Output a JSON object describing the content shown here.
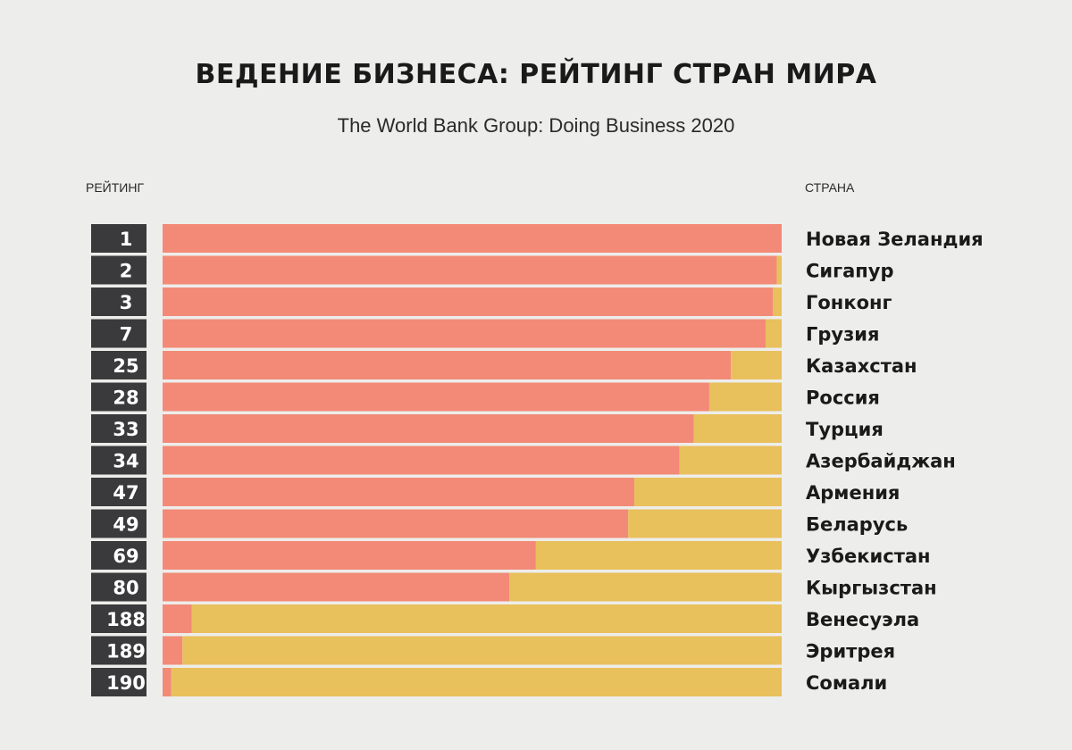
{
  "title": "ВЕДЕНИЕ БИЗНЕСА: РЕЙТИНГ СТРАН МИРА",
  "subtitle": "The World Bank Group: Doing Business 2020",
  "rank_header": "РЕЙТИНГ",
  "country_header": "СТРАНА",
  "colors": {
    "background": "#ededeb",
    "score_bar": "#f28a77",
    "remainder_bar": "#e8c05c",
    "rank_box": "#3a3a3c"
  },
  "chart_data": {
    "type": "bar",
    "orientation": "horizontal",
    "stacked": true,
    "title": "ВЕДЕНИЕ БИЗНЕСА: РЕЙТИНГ СТРАН МИРА",
    "subtitle": "The World Bank Group: Doing Business 2020",
    "xlim": [
      0,
      100
    ],
    "ranks": [
      "1",
      "2",
      "3",
      "7",
      "25",
      "28",
      "33",
      "34",
      "47",
      "49",
      "69",
      "80",
      "188",
      "189",
      "190"
    ],
    "categories": [
      "Новая Зеландия",
      "Сигапур",
      "Гонконг",
      "Грузия",
      "Казахстан",
      "Россия",
      "Турция",
      "Азербайджан",
      "Армения",
      "Беларусь",
      "Узбекистан",
      "Кыргызстан",
      "Венесуэла",
      "Эритрея",
      "Сомали"
    ],
    "series": [
      {
        "color": "#f28a77",
        "values": [
          100,
          99.2,
          98.6,
          97.4,
          91.8,
          88.3,
          85.8,
          83.5,
          76.2,
          75.2,
          60.3,
          56.0,
          4.7,
          3.2,
          1.4
        ]
      },
      {
        "color": "#e8c05c",
        "values": [
          0,
          0.8,
          1.4,
          2.6,
          8.2,
          11.7,
          14.2,
          16.5,
          23.8,
          24.8,
          39.7,
          44.0,
          95.3,
          96.8,
          98.6
        ]
      }
    ]
  }
}
